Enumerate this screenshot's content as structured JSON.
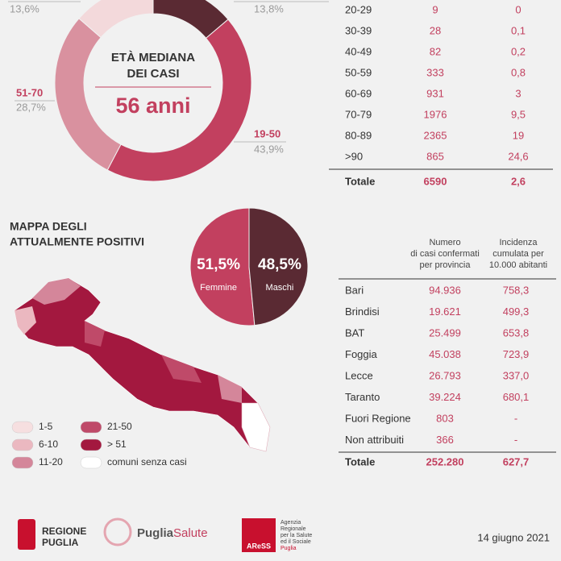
{
  "age_donut": {
    "title_line1": "ETÀ MEDIANA",
    "title_line2": "DEI CASI",
    "median": "56 anni",
    "segments": [
      {
        "value": 13.8,
        "value_label": "13,8%",
        "color": "#5a2a33"
      },
      {
        "label": "19-50",
        "value": 43.9,
        "value_label": "43,9%",
        "color": "#c2405f"
      },
      {
        "label": "51-70",
        "value": 28.7,
        "value_label": "28,7%",
        "color": "#d9919f"
      },
      {
        "value": 13.6,
        "value_label": "13,6%",
        "color": "#f3d9db"
      }
    ]
  },
  "age_table": {
    "rows": [
      [
        "20-29",
        "9",
        "0"
      ],
      [
        "30-39",
        "28",
        "0,1"
      ],
      [
        "40-49",
        "82",
        "0,2"
      ],
      [
        "50-59",
        "333",
        "0,8"
      ],
      [
        "60-69",
        "931",
        "3"
      ],
      [
        "70-79",
        "1976",
        "9,5"
      ],
      [
        "80-89",
        "2365",
        "19"
      ],
      [
        ">90",
        "865",
        "24,6"
      ]
    ],
    "total": [
      "Totale",
      "6590",
      "2,6"
    ]
  },
  "map": {
    "title_line1": "MAPPA DEGLI",
    "title_line2": "ATTUALMENTE POSITIVI",
    "legend": [
      {
        "label": "1-5",
        "color": "#f6dfe0"
      },
      {
        "label": "6-10",
        "color": "#ebb8c0"
      },
      {
        "label": "11-20",
        "color": "#d4869a"
      },
      {
        "label": "21-50",
        "color": "#bf4a69"
      },
      {
        "label": "> 51",
        "color": "#a3183f"
      },
      {
        "label": "comuni senza casi",
        "color": "#ffffff"
      }
    ]
  },
  "gender_pie": {
    "values": [
      51.5,
      48.5
    ],
    "value_labels": [
      "51,5%",
      "48,5%"
    ],
    "labels": [
      "Femmine",
      "Maschi"
    ],
    "colors": [
      "#c2405f",
      "#5a2a33"
    ]
  },
  "province_table": {
    "header_col2": [
      "Numero",
      "di casi confermati",
      "per provincia"
    ],
    "header_col3": [
      "Incidenza",
      "cumulata per",
      "10.000 abitanti"
    ],
    "rows": [
      [
        "Bari",
        "94.936",
        "758,3"
      ],
      [
        "Brindisi",
        "19.621",
        "499,3"
      ],
      [
        "BAT",
        "25.499",
        "653,8"
      ],
      [
        "Foggia",
        "45.038",
        "723,9"
      ],
      [
        "Lecce",
        "26.793",
        "337,0"
      ],
      [
        "Taranto",
        "39.224",
        "680,1"
      ],
      [
        "Fuori Regione",
        "803",
        "-"
      ],
      [
        "Non attribuiti",
        "366",
        "-"
      ]
    ],
    "total": [
      "Totale",
      "252.280",
      "627,7"
    ]
  },
  "footer": {
    "regione_line1": "REGIONE",
    "regione_line2": "PUGLIA",
    "puglia": "Puglia",
    "salute": "Salute",
    "aress_text": [
      "Agenzia",
      "Regionale",
      "per la Salute",
      "ed il Sociale",
      "Puglia"
    ],
    "aress_logo": "AReSS",
    "date": "14 giugno 2021"
  }
}
